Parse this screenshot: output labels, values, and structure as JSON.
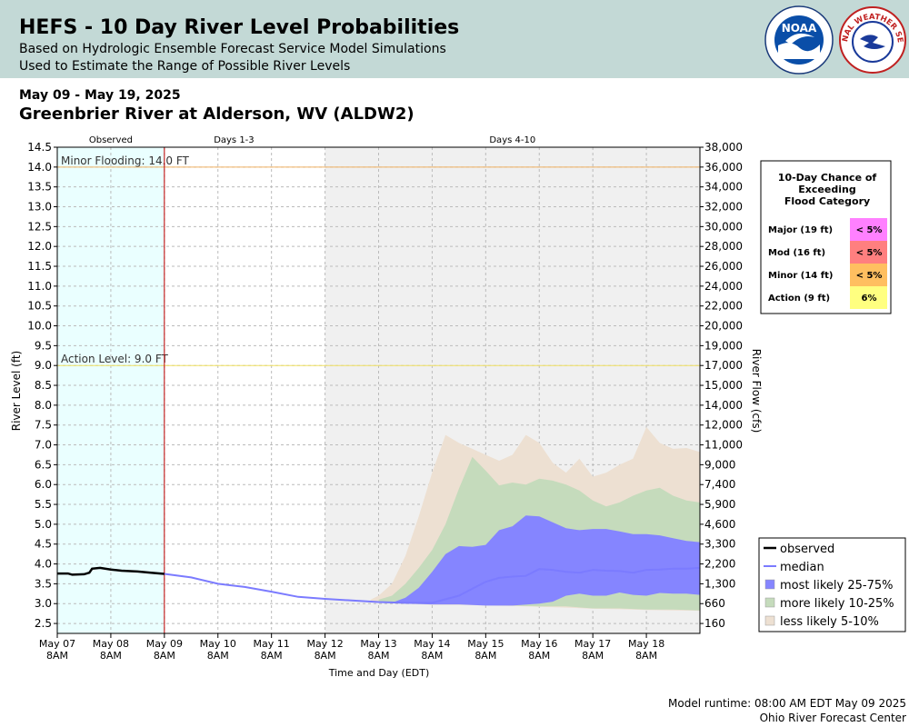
{
  "header": {
    "title": "HEFS - 10 Day River Level Probabilities",
    "subtitle1": "Based on Hydrologic Ensemble Forecast Service Model Simulations",
    "subtitle2": "Used to Estimate the Range of Possible River Levels",
    "noaa_logo_text": "NOAA",
    "nws_logo_text": "NATIONAL WEATHER SERVICE"
  },
  "date_range": "May 09 - May 19, 2025",
  "station": "Greenbrier River at Alderson, WV (ALDW2)",
  "footer": {
    "runtime": "Model runtime: 08:00 AM EDT May 09 2025",
    "center": "Ohio River Forecast Center"
  },
  "colors": {
    "observed_bg": "#eaffff",
    "days4_10_bg": "#f0f0f0",
    "median": "#7b7bff",
    "band_25_75": "#8585ff",
    "band_10_25": "#c5dbbc",
    "band_5_10": "#ede0d2",
    "minor_line": "#f0b060",
    "action_line": "#f0e060",
    "forecast_start_line": "#c00000",
    "major": "#ff80ff",
    "moderate": "#ff7f7f",
    "minor": "#ffbf60",
    "action": "#ffff80"
  },
  "chart_data": {
    "type": "area",
    "period_labels": [
      "Observed",
      "Days 1-3",
      "Days 4-10"
    ],
    "xlabel": "Time and Day (EDT)",
    "ylabel": "River Level (ft)",
    "ylabel_right": "River Flow (cfs)",
    "x_range_days": [
      0,
      12
    ],
    "ylim": [
      2.25,
      14.5
    ],
    "x_ticks": [
      {
        "day": "May 07",
        "time": "8AM",
        "x": 0
      },
      {
        "day": "May 08",
        "time": "8AM",
        "x": 1
      },
      {
        "day": "May 09",
        "time": "8AM",
        "x": 2
      },
      {
        "day": "May 10",
        "time": "8AM",
        "x": 3
      },
      {
        "day": "May 11",
        "time": "8AM",
        "x": 4
      },
      {
        "day": "May 12",
        "time": "8AM",
        "x": 5
      },
      {
        "day": "May 13",
        "time": "8AM",
        "x": 6
      },
      {
        "day": "May 14",
        "time": "8AM",
        "x": 7
      },
      {
        "day": "May 15",
        "time": "8AM",
        "x": 8
      },
      {
        "day": "May 16",
        "time": "8AM",
        "x": 9
      },
      {
        "day": "May 17",
        "time": "8AM",
        "x": 10
      },
      {
        "day": "May 18",
        "time": "8AM",
        "x": 11
      }
    ],
    "y_ticks": [
      {
        "v": 14.5,
        "label": "14.5",
        "flow": "38,000"
      },
      {
        "v": 14.0,
        "label": "14.0",
        "flow": "36,000"
      },
      {
        "v": 13.5,
        "label": "13.5",
        "flow": "34,000"
      },
      {
        "v": 13.0,
        "label": "13.0",
        "flow": "32,000"
      },
      {
        "v": 12.5,
        "label": "12.5",
        "flow": "30,000"
      },
      {
        "v": 12.0,
        "label": "12.0",
        "flow": "28,000"
      },
      {
        "v": 11.5,
        "label": "11.5",
        "flow": "26,000"
      },
      {
        "v": 11.0,
        "label": "11.0",
        "flow": "24,000"
      },
      {
        "v": 10.5,
        "label": "10.5",
        "flow": "22,000"
      },
      {
        "v": 10.0,
        "label": "10.0",
        "flow": "20,000"
      },
      {
        "v": 9.5,
        "label": "9.5",
        "flow": "19,000"
      },
      {
        "v": 9.0,
        "label": "9.0",
        "flow": "17,000"
      },
      {
        "v": 8.5,
        "label": "8.5",
        "flow": "15,000"
      },
      {
        "v": 8.0,
        "label": "8.0",
        "flow": "14,000"
      },
      {
        "v": 7.5,
        "label": "7.5",
        "flow": "12,000"
      },
      {
        "v": 7.0,
        "label": "7.0",
        "flow": "11,000"
      },
      {
        "v": 6.5,
        "label": "6.5",
        "flow": "9,000"
      },
      {
        "v": 6.0,
        "label": "6.0",
        "flow": "7,400"
      },
      {
        "v": 5.5,
        "label": "5.5",
        "flow": "5,900"
      },
      {
        "v": 5.0,
        "label": "5.0",
        "flow": "4,600"
      },
      {
        "v": 4.5,
        "label": "4.5",
        "flow": "3,300"
      },
      {
        "v": 4.0,
        "label": "4.0",
        "flow": "2,200"
      },
      {
        "v": 3.5,
        "label": "3.5",
        "flow": "1,300"
      },
      {
        "v": 3.0,
        "label": "3.0",
        "flow": "660"
      },
      {
        "v": 2.5,
        "label": "2.5",
        "flow": "160"
      }
    ],
    "thresholds": [
      {
        "label": "Minor Flooding: 14.0 FT",
        "value": 14.0
      },
      {
        "label": "Action Level: 9.0 FT",
        "value": 9.0
      }
    ],
    "observed": [
      [
        0,
        3.76
      ],
      [
        0.2,
        3.76
      ],
      [
        0.28,
        3.73
      ],
      [
        0.5,
        3.74
      ],
      [
        0.6,
        3.78
      ],
      [
        0.65,
        3.88
      ],
      [
        0.8,
        3.9
      ],
      [
        1.0,
        3.86
      ],
      [
        1.2,
        3.83
      ],
      [
        1.5,
        3.81
      ],
      [
        1.75,
        3.78
      ],
      [
        2.0,
        3.75
      ]
    ],
    "median": [
      [
        2,
        3.75
      ],
      [
        2.5,
        3.66
      ],
      [
        3,
        3.5
      ],
      [
        3.5,
        3.42
      ],
      [
        4,
        3.3
      ],
      [
        4.5,
        3.17
      ],
      [
        5,
        3.12
      ],
      [
        5.5,
        3.08
      ],
      [
        6,
        3.04
      ],
      [
        6.5,
        3.02
      ],
      [
        7,
        3.02
      ],
      [
        7.5,
        3.2
      ],
      [
        8,
        3.55
      ],
      [
        8.25,
        3.65
      ],
      [
        8.5,
        3.68
      ],
      [
        8.75,
        3.7
      ],
      [
        9,
        3.87
      ],
      [
        9.25,
        3.85
      ],
      [
        9.5,
        3.8
      ],
      [
        9.75,
        3.78
      ],
      [
        10,
        3.85
      ],
      [
        10.25,
        3.83
      ],
      [
        10.5,
        3.82
      ],
      [
        10.75,
        3.78
      ],
      [
        11,
        3.85
      ],
      [
        11.25,
        3.86
      ],
      [
        11.5,
        3.88
      ],
      [
        11.75,
        3.88
      ],
      [
        12,
        3.9
      ]
    ],
    "band_25_75": {
      "upper": [
        [
          6.3,
          3.05
        ],
        [
          6.5,
          3.15
        ],
        [
          6.75,
          3.4
        ],
        [
          7,
          3.8
        ],
        [
          7.25,
          4.25
        ],
        [
          7.5,
          4.45
        ],
        [
          7.75,
          4.43
        ],
        [
          8,
          4.48
        ],
        [
          8.25,
          4.85
        ],
        [
          8.5,
          4.95
        ],
        [
          8.75,
          5.22
        ],
        [
          9,
          5.2
        ],
        [
          9.25,
          5.05
        ],
        [
          9.5,
          4.9
        ],
        [
          9.75,
          4.85
        ],
        [
          10,
          4.88
        ],
        [
          10.25,
          4.88
        ],
        [
          10.5,
          4.82
        ],
        [
          10.75,
          4.75
        ],
        [
          11,
          4.75
        ],
        [
          11.25,
          4.72
        ],
        [
          11.5,
          4.65
        ],
        [
          11.75,
          4.58
        ],
        [
          12,
          4.55
        ]
      ],
      "lower": [
        [
          6.3,
          3.05
        ],
        [
          6.5,
          3.0
        ],
        [
          7,
          2.98
        ],
        [
          7.5,
          2.98
        ],
        [
          8,
          2.95
        ],
        [
          8.5,
          2.95
        ],
        [
          9,
          3.0
        ],
        [
          9.25,
          3.05
        ],
        [
          9.5,
          3.2
        ],
        [
          9.75,
          3.25
        ],
        [
          10,
          3.2
        ],
        [
          10.25,
          3.2
        ],
        [
          10.5,
          3.28
        ],
        [
          10.75,
          3.22
        ],
        [
          11,
          3.2
        ],
        [
          11.25,
          3.27
        ],
        [
          11.5,
          3.25
        ],
        [
          11.75,
          3.25
        ],
        [
          12,
          3.22
        ]
      ]
    },
    "band_10_25": {
      "upper": [
        [
          6,
          3.1
        ],
        [
          6.25,
          3.2
        ],
        [
          6.5,
          3.5
        ],
        [
          6.75,
          3.9
        ],
        [
          7,
          4.35
        ],
        [
          7.25,
          5.0
        ],
        [
          7.5,
          5.9
        ],
        [
          7.75,
          6.7
        ],
        [
          8,
          6.35
        ],
        [
          8.25,
          5.98
        ],
        [
          8.5,
          6.05
        ],
        [
          8.75,
          6.0
        ],
        [
          9,
          6.15
        ],
        [
          9.25,
          6.1
        ],
        [
          9.5,
          6.0
        ],
        [
          9.75,
          5.85
        ],
        [
          10,
          5.6
        ],
        [
          10.25,
          5.45
        ],
        [
          10.5,
          5.55
        ],
        [
          10.75,
          5.72
        ],
        [
          11,
          5.85
        ],
        [
          11.25,
          5.92
        ],
        [
          11.5,
          5.72
        ],
        [
          11.75,
          5.6
        ],
        [
          12,
          5.55
        ]
      ],
      "lower": [
        [
          6,
          3.05
        ],
        [
          6.5,
          3.0
        ],
        [
          7,
          2.98
        ],
        [
          7.5,
          2.98
        ],
        [
          8,
          2.96
        ],
        [
          8.5,
          2.95
        ],
        [
          9,
          2.93
        ],
        [
          9.5,
          2.93
        ],
        [
          10,
          2.88
        ],
        [
          10.5,
          2.88
        ],
        [
          11,
          2.85
        ],
        [
          11.5,
          2.85
        ],
        [
          12,
          2.83
        ]
      ]
    },
    "band_5_10": {
      "upper": [
        [
          5.85,
          3.1
        ],
        [
          6,
          3.2
        ],
        [
          6.25,
          3.5
        ],
        [
          6.5,
          4.2
        ],
        [
          6.75,
          5.2
        ],
        [
          7,
          6.3
        ],
        [
          7.25,
          7.25
        ],
        [
          7.5,
          7.05
        ],
        [
          7.75,
          6.9
        ],
        [
          8,
          6.75
        ],
        [
          8.25,
          6.6
        ],
        [
          8.5,
          6.75
        ],
        [
          8.75,
          7.25
        ],
        [
          9,
          7.05
        ],
        [
          9.25,
          6.55
        ],
        [
          9.5,
          6.3
        ],
        [
          9.75,
          6.65
        ],
        [
          10,
          6.2
        ],
        [
          10.25,
          6.3
        ],
        [
          10.5,
          6.5
        ],
        [
          10.75,
          6.65
        ],
        [
          11,
          7.45
        ],
        [
          11.25,
          7.05
        ],
        [
          11.5,
          6.9
        ],
        [
          11.75,
          6.92
        ],
        [
          12,
          6.82
        ]
      ],
      "lower": [
        [
          5.85,
          3.05
        ],
        [
          6.5,
          3.0
        ],
        [
          7,
          2.97
        ],
        [
          7.5,
          2.97
        ],
        [
          8,
          2.95
        ],
        [
          8.5,
          2.94
        ],
        [
          9,
          2.92
        ],
        [
          9.5,
          2.9
        ],
        [
          10,
          2.87
        ],
        [
          10.5,
          2.86
        ],
        [
          11,
          2.84
        ],
        [
          11.5,
          2.83
        ],
        [
          12,
          2.82
        ]
      ]
    },
    "legend": [
      {
        "key": "observed",
        "label": "observed"
      },
      {
        "key": "median",
        "label": "median"
      },
      {
        "key": "band_25_75",
        "label": "most likely 25-75%"
      },
      {
        "key": "band_10_25",
        "label": "more likely 10-25%"
      },
      {
        "key": "band_5_10",
        "label": "less likely 5-10%"
      }
    ],
    "legend_position": "bottom-right",
    "flood_table": {
      "title": [
        "10-Day Chance of",
        "Exceeding",
        "Flood Category"
      ],
      "rows": [
        {
          "label": "Major (19 ft)",
          "value": "< 5%",
          "color_key": "major"
        },
        {
          "label": "Mod (16 ft)",
          "value": "< 5%",
          "color_key": "moderate"
        },
        {
          "label": "Minor (14 ft)",
          "value": "< 5%",
          "color_key": "minor"
        },
        {
          "label": "Action (9 ft)",
          "value": "6%",
          "color_key": "action"
        }
      ]
    }
  }
}
